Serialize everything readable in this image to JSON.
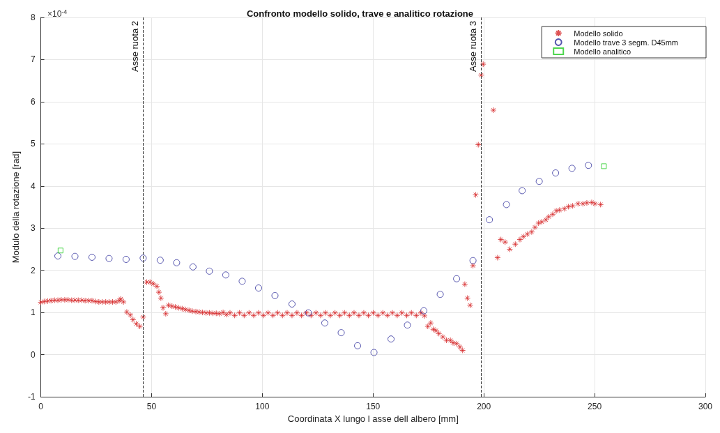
{
  "chart_data": {
    "type": "scatter",
    "title": "Confronto modello solido, trave e analitico rotazione",
    "xlabel": "Coordinata X lungo l asse dell albero [mm]",
    "ylabel": "Modulo della rotazione [rad]",
    "annotations": [
      "×10$^{-4}$"
    ],
    "xlim": [
      0,
      300
    ],
    "xticks": [
      0,
      50,
      100,
      150,
      200,
      250,
      300
    ],
    "ylim": [
      -1,
      8
    ],
    "yticks": [
      -1,
      0,
      1,
      2,
      3,
      4,
      5,
      6,
      7,
      8
    ],
    "grid": true,
    "legend": "top right",
    "ref_lines": [
      {
        "axis": "x",
        "value": 46.2,
        "label": "Asse ruota 2",
        "color": "#333333",
        "line_style": "dashed"
      },
      {
        "axis": "x",
        "value": 198.8,
        "label": "Asse ruota 3",
        "color": "#333333",
        "line_style": "dashed"
      }
    ],
    "series": [
      {
        "name": "Modello solido",
        "color": "#d62728",
        "marker": "cross",
        "x": [
          0,
          1.5,
          3.1,
          4.6,
          6.2,
          7.7,
          9.2,
          10.8,
          12.3,
          13.9,
          15.4,
          16.9,
          18.5,
          20.0,
          21.6,
          23.1,
          24.7,
          26.2,
          27.7,
          29.3,
          30.8,
          32.4,
          33.9,
          35.4,
          36.1,
          37.3,
          38.8,
          40.4,
          41.6,
          43.1,
          44.7,
          46.2,
          47.8,
          49.3,
          50.8,
          52.4,
          53.3,
          54.2,
          55.2,
          56.4,
          57.6,
          59.2,
          60.7,
          62.2,
          63.8,
          65.3,
          66.9,
          68.4,
          70.0,
          71.5,
          73.0,
          74.6,
          76.1,
          77.7,
          79.2,
          80.7,
          82.3,
          83.8,
          85.4,
          87.5,
          89.7,
          91.8,
          94.0,
          96.1,
          98.3,
          100.5,
          102.6,
          104.8,
          106.9,
          109.1,
          111.2,
          113.4,
          115.6,
          117.7,
          119.9,
          122.0,
          124.2,
          126.3,
          128.5,
          130.7,
          132.8,
          135.0,
          137.1,
          139.3,
          141.4,
          143.6,
          145.8,
          147.9,
          150.1,
          152.2,
          154.4,
          156.5,
          158.7,
          160.9,
          163.0,
          165.2,
          167.3,
          169.5,
          171.6,
          173.2,
          174.7,
          176.0,
          177.2,
          178.4,
          179.7,
          181.5,
          183.1,
          184.9,
          186.1,
          187.7,
          189.2,
          190.4,
          191.4,
          192.6,
          193.8,
          195.1,
          196.3,
          197.5,
          198.8,
          199.7,
          204.3,
          206.2,
          207.7,
          209.6,
          211.7,
          214.2,
          216.3,
          217.9,
          219.7,
          221.6,
          223.1,
          224.7,
          226.2,
          228.0,
          229.3,
          231.1,
          232.7,
          234.2,
          236.4,
          238.2,
          240.1,
          242.5,
          244.7,
          246.5,
          248.7,
          250.2,
          252.7
        ],
        "values": [
          1.24,
          1.26,
          1.27,
          1.28,
          1.29,
          1.29,
          1.3,
          1.3,
          1.3,
          1.29,
          1.29,
          1.29,
          1.29,
          1.28,
          1.28,
          1.28,
          1.26,
          1.25,
          1.25,
          1.25,
          1.25,
          1.25,
          1.25,
          1.28,
          1.32,
          1.25,
          1.01,
          0.94,
          0.83,
          0.73,
          0.67,
          0.89,
          1.72,
          1.72,
          1.68,
          1.62,
          1.48,
          1.34,
          1.11,
          0.97,
          1.17,
          1.15,
          1.13,
          1.11,
          1.09,
          1.07,
          1.05,
          1.03,
          1.02,
          1.01,
          1.0,
          0.99,
          0.99,
          0.98,
          0.98,
          0.97,
          1.0,
          0.95,
          0.99,
          0.93,
          0.99,
          0.93,
          0.99,
          0.93,
          0.99,
          0.93,
          0.99,
          0.93,
          0.99,
          0.93,
          0.99,
          0.93,
          0.99,
          0.93,
          0.99,
          0.93,
          0.99,
          0.93,
          0.99,
          0.93,
          0.99,
          0.93,
          0.99,
          0.93,
          0.99,
          0.93,
          0.99,
          0.93,
          0.99,
          0.93,
          0.99,
          0.93,
          0.99,
          0.93,
          0.99,
          0.93,
          0.99,
          0.93,
          0.99,
          0.92,
          0.67,
          0.75,
          0.6,
          0.57,
          0.5,
          0.42,
          0.34,
          0.34,
          0.28,
          0.26,
          0.18,
          0.1,
          1.67,
          1.34,
          1.17,
          2.11,
          3.79,
          4.98,
          6.63,
          6.89,
          5.8,
          2.3,
          2.73,
          2.67,
          2.5,
          2.62,
          2.73,
          2.8,
          2.86,
          2.91,
          3.02,
          3.12,
          3.15,
          3.2,
          3.27,
          3.33,
          3.41,
          3.43,
          3.46,
          3.51,
          3.53,
          3.58,
          3.58,
          3.6,
          3.61,
          3.58,
          3.56
        ]
      },
      {
        "name": "Modello trave 3 segm. D45mm",
        "color": "#2b2b9a",
        "marker": "circle",
        "x": [
          7.7,
          15.4,
          23.1,
          30.8,
          38.5,
          46.2,
          53.9,
          61.3,
          68.7,
          76.1,
          83.5,
          90.9,
          98.3,
          105.7,
          113.4,
          120.8,
          128.2,
          135.6,
          143.0,
          150.4,
          158.1,
          165.5,
          172.9,
          180.3,
          187.7,
          195.1,
          202.5,
          210.2,
          217.3,
          225.0,
          232.4,
          239.8,
          247.2
        ],
        "values": [
          2.34,
          2.33,
          2.31,
          2.28,
          2.26,
          2.29,
          2.24,
          2.18,
          2.08,
          1.98,
          1.89,
          1.74,
          1.58,
          1.4,
          1.2,
          0.99,
          0.75,
          0.52,
          0.21,
          0.05,
          0.37,
          0.7,
          1.04,
          1.43,
          1.8,
          2.23,
          3.2,
          3.56,
          3.89,
          4.11,
          4.31,
          4.42,
          4.49
        ]
      },
      {
        "name": "Modello analitico",
        "color": "#22cc22",
        "marker": "square",
        "x": [
          8.9,
          254.2
        ],
        "values": [
          2.47,
          4.47
        ]
      }
    ]
  }
}
